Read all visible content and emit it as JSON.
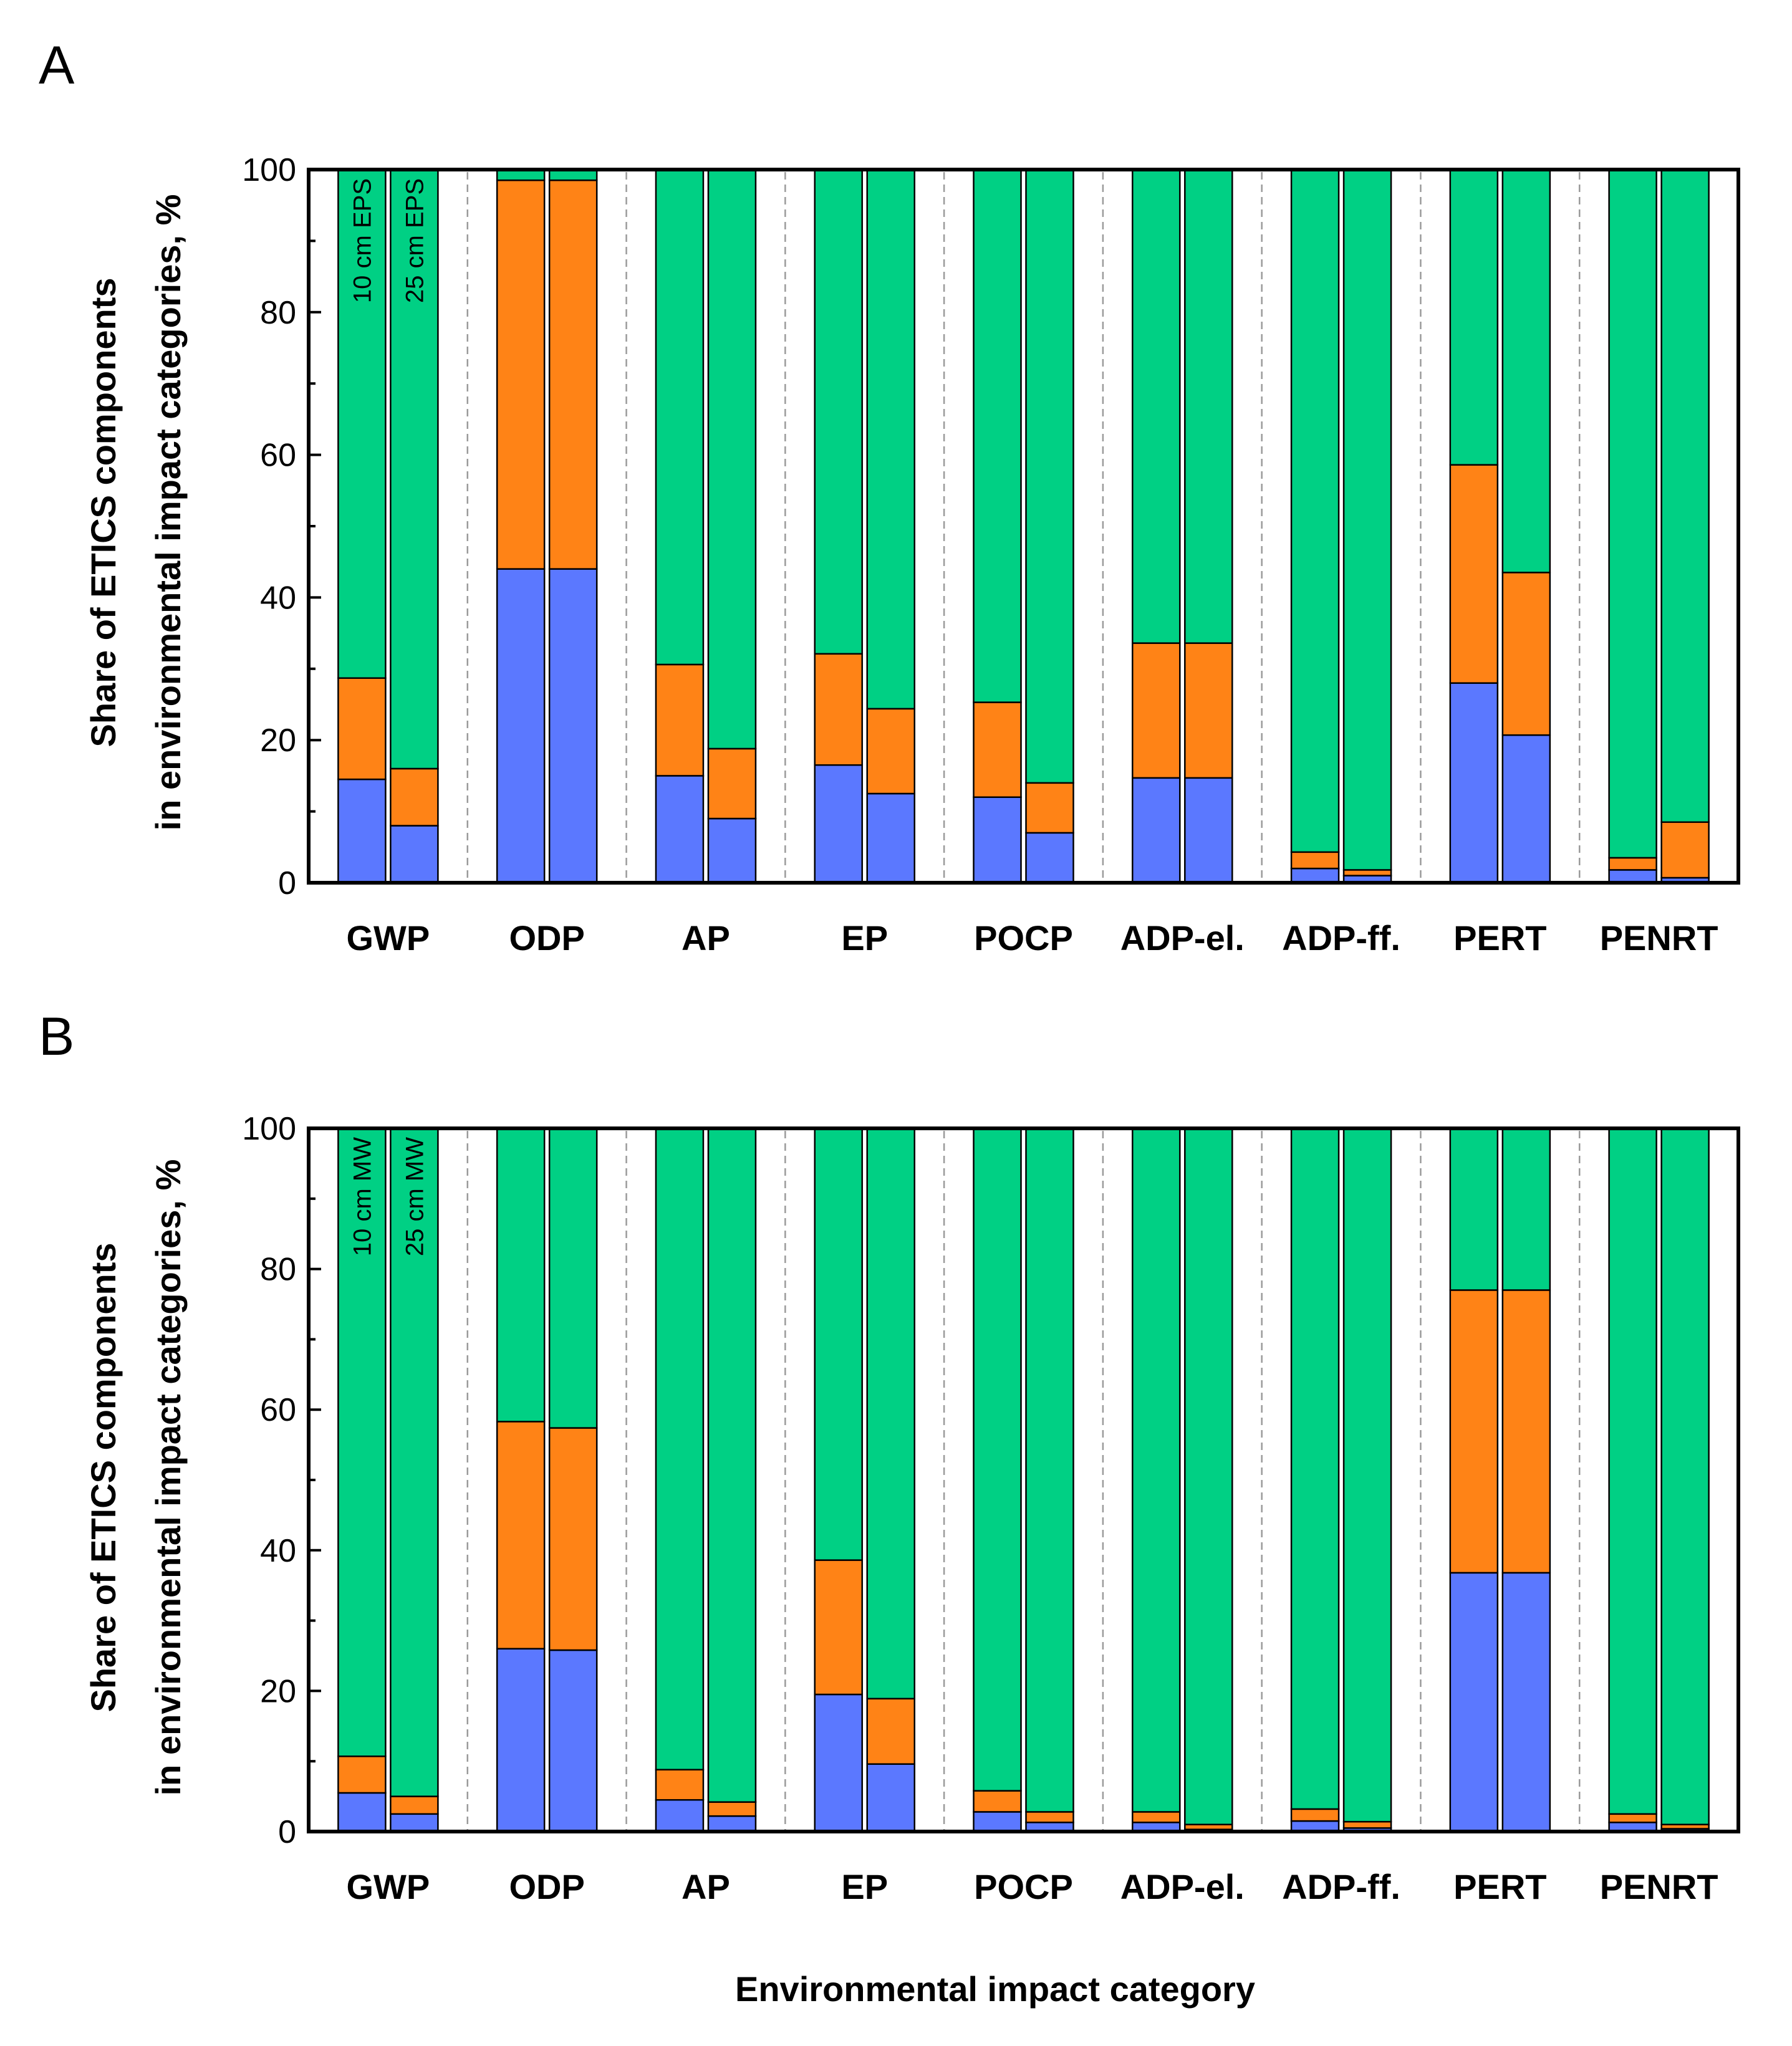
{
  "figure": {
    "xlabel": "Environmental impact category",
    "ylabel_line1": "Share of ETICS components",
    "ylabel_line2": "in environmental impact categories, %"
  },
  "colors": {
    "bottom": "#5B78FF",
    "middle": "#FF8316",
    "top": "#00D084"
  },
  "chart_data": [
    {
      "type": "bar",
      "stacked": true,
      "panel": "A",
      "categories": [
        "GWP",
        "ODP",
        "AP",
        "EP",
        "POCP",
        "ADP-el.",
        "ADP-ff.",
        "PERT",
        "PENRT"
      ],
      "bar_labels": [
        "10 cm EPS",
        "25 cm EPS"
      ],
      "xlabel": "Environmental impact category",
      "ylabel": "Share of ETICS components in environmental impact categories, %",
      "ylim": [
        0,
        100
      ],
      "yticks": [
        0,
        20,
        40,
        60,
        80,
        100
      ],
      "series": [
        {
          "name": "bottom",
          "values_10cm": [
            14.5,
            44,
            15,
            16.5,
            12,
            14.7,
            2,
            28,
            1.8
          ],
          "values_25cm": [
            8,
            44,
            9,
            12.5,
            7,
            14.7,
            1,
            20.7,
            0.7
          ]
        },
        {
          "name": "middle",
          "values_10cm": [
            14.2,
            54.5,
            15.6,
            15.6,
            13.3,
            18.9,
            2.3,
            30.6,
            1.7
          ],
          "values_25cm": [
            8,
            54.5,
            9.8,
            11.9,
            7,
            18.9,
            0.8,
            22.8,
            7.8
          ]
        },
        {
          "name": "top",
          "values_10cm": [
            71.3,
            1.5,
            69.4,
            67.9,
            74.7,
            66.4,
            95.7,
            41.4,
            96.5
          ],
          "values_25cm": [
            84,
            1.5,
            81.2,
            75.6,
            86,
            66.4,
            98.2,
            56.5,
            91.5
          ]
        }
      ]
    },
    {
      "type": "bar",
      "stacked": true,
      "panel": "B",
      "categories": [
        "GWP",
        "ODP",
        "AP",
        "EP",
        "POCP",
        "ADP-el.",
        "ADP-ff.",
        "PERT",
        "PENRT"
      ],
      "bar_labels": [
        "10 cm MW",
        "25 cm MW"
      ],
      "xlabel": "Environmental impact category",
      "ylabel": "Share of ETICS components in environmental impact categories, %",
      "ylim": [
        0,
        100
      ],
      "yticks": [
        0,
        20,
        40,
        60,
        80,
        100
      ],
      "series": [
        {
          "name": "bottom",
          "values_10cm": [
            5.5,
            26,
            4.5,
            19.5,
            2.8,
            1.3,
            1.5,
            36.8,
            1.3
          ],
          "values_25cm": [
            2.5,
            25.8,
            2.2,
            9.6,
            1.3,
            0.3,
            0.5,
            36.8,
            0.4
          ]
        },
        {
          "name": "middle",
          "values_10cm": [
            5.2,
            32.3,
            4.3,
            19.1,
            3,
            1.5,
            1.7,
            40.2,
            1.2
          ],
          "values_25cm": [
            2.5,
            31.6,
            2,
            9.3,
            1.5,
            0.7,
            0.9,
            40.2,
            0.6
          ]
        },
        {
          "name": "top",
          "values_10cm": [
            89.3,
            41.7,
            91.2,
            61.4,
            94.2,
            97.2,
            96.8,
            23,
            97.5
          ],
          "values_25cm": [
            95,
            42.6,
            95.8,
            81.1,
            97.2,
            99,
            98.6,
            23,
            99
          ]
        }
      ]
    }
  ]
}
